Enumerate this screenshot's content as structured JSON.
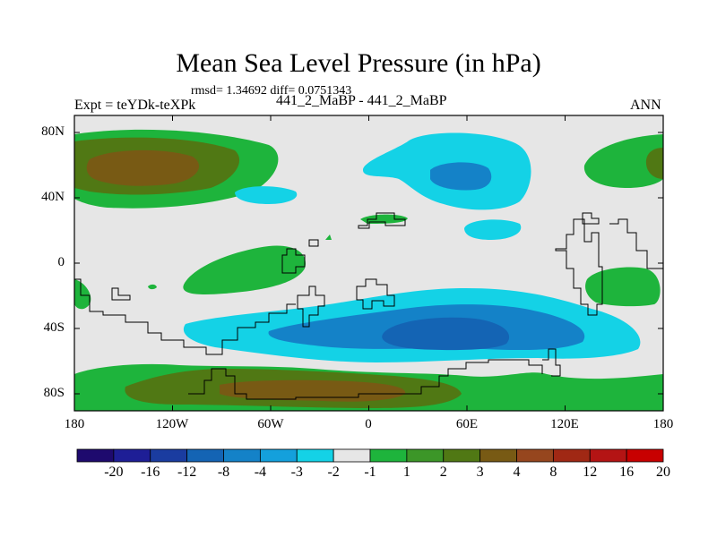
{
  "title": "Mean Sea Level Pressure (in hPa)",
  "stats": "rmsd= 1.34692 diff= 0.0751343",
  "experiment": "Expt = teYDk-teXPk",
  "subtitle": "441_2_MaBP - 441_2_MaBP",
  "season": "ANN",
  "lat_labels": [
    "80N",
    "40N",
    "0",
    "40S",
    "80S"
  ],
  "lon_labels": [
    "180",
    "120W",
    "60W",
    "0",
    "60E",
    "120E",
    "180"
  ],
  "colorbar": {
    "colors": [
      "#1e0a6e",
      "#1e1e96",
      "#1a3ca0",
      "#1464b4",
      "#1482c8",
      "#14a0dc",
      "#14d2e6",
      "#e6e6e6",
      "#1eb43c",
      "#3c9628",
      "#507814",
      "#785a14",
      "#96461e",
      "#a02814",
      "#b41414",
      "#c80000"
    ],
    "labels": [
      "-20",
      "-16",
      "-12",
      "-8",
      "-4",
      "-3",
      "-2",
      "-1",
      "1",
      "2",
      "3",
      "4",
      "8",
      "12",
      "16",
      "20"
    ]
  },
  "map_colors": {
    "background": "#e6e6e6",
    "green": "#1eb43c",
    "olive": "#507814",
    "brown": "#785a14",
    "cyan": "#14d2e6",
    "blue": "#1482c8",
    "darkblue": "#1464b4",
    "coast": "#000000"
  }
}
